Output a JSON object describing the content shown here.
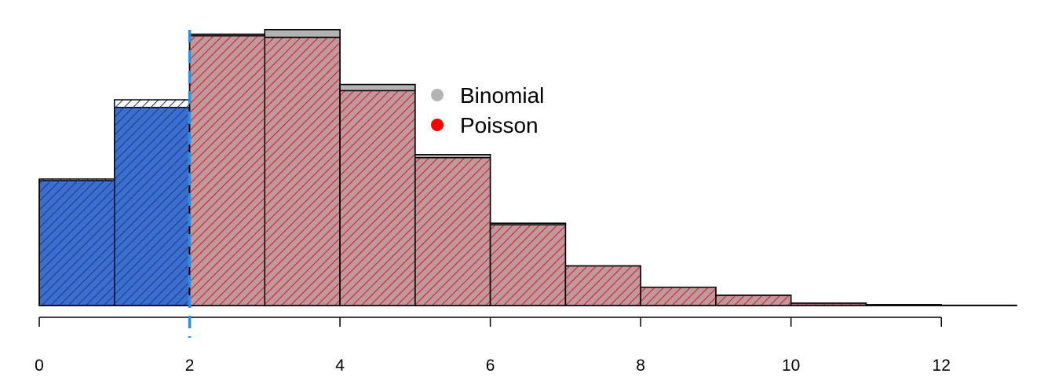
{
  "chart_data": {
    "type": "bar",
    "title": "",
    "xlabel": "",
    "ylabel": "",
    "xlim": [
      0,
      13
    ],
    "ylim": [
      0,
      0.185
    ],
    "x_ticks": [
      0,
      2,
      4,
      6,
      8,
      10,
      12
    ],
    "cutoff_x": 2,
    "bins": [
      0,
      1,
      2,
      3,
      4,
      5,
      6,
      7,
      8,
      9,
      10,
      11,
      12
    ],
    "series": [
      {
        "name": "Binomial",
        "color": "#b3b3b3",
        "values": [
          0.082,
          0.13,
          0.178,
          0.181,
          0.145,
          0.099,
          0.054,
          0.026,
          0.012,
          0.0065,
          0.0012,
          0.0004,
          0.0001
        ]
      },
      {
        "name": "Poisson",
        "color": "#ff0000",
        "values": [
          0.083,
          0.135,
          0.177,
          0.176,
          0.141,
          0.097,
          0.053,
          0.026,
          0.012,
          0.0068,
          0.0016,
          0.0006,
          0.0002
        ]
      }
    ],
    "highlight_color": "#3a6fcf",
    "cutoff_color": "#2f8fe0",
    "legend": {
      "position": "top-center",
      "entries": [
        {
          "label": "Binomial",
          "color": "#b3b3b3"
        },
        {
          "label": "Poisson",
          "color": "#ff0000"
        }
      ]
    }
  }
}
